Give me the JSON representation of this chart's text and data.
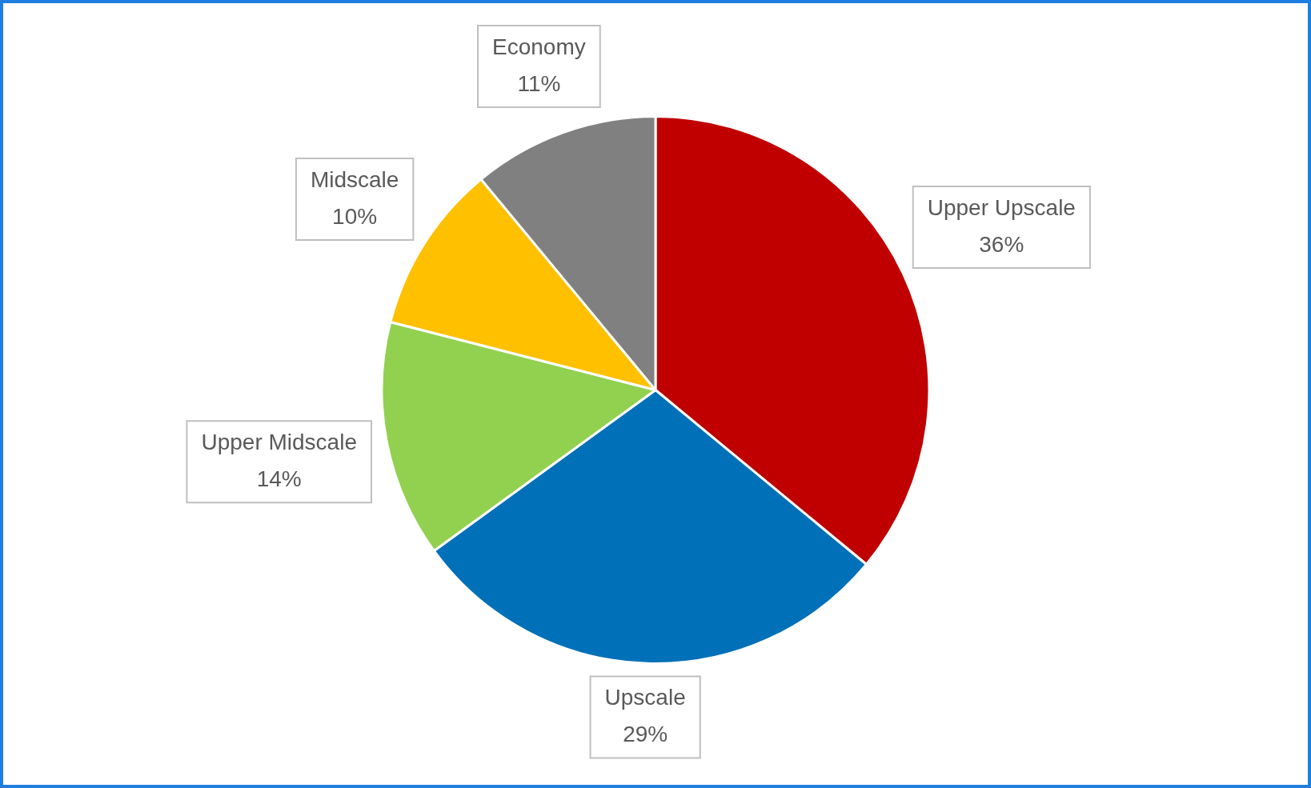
{
  "chart_data": {
    "type": "pie",
    "categories": [
      "Upper Upscale",
      "Upscale",
      "Upper Midscale",
      "Midscale",
      "Economy"
    ],
    "values": [
      36,
      29,
      14,
      10,
      11
    ],
    "colors": [
      "#c00000",
      "#0070b8",
      "#92d050",
      "#ffc000",
      "#808080"
    ],
    "value_labels": [
      "36%",
      "29%",
      "14%",
      "10%",
      "11%"
    ],
    "legend": false
  }
}
